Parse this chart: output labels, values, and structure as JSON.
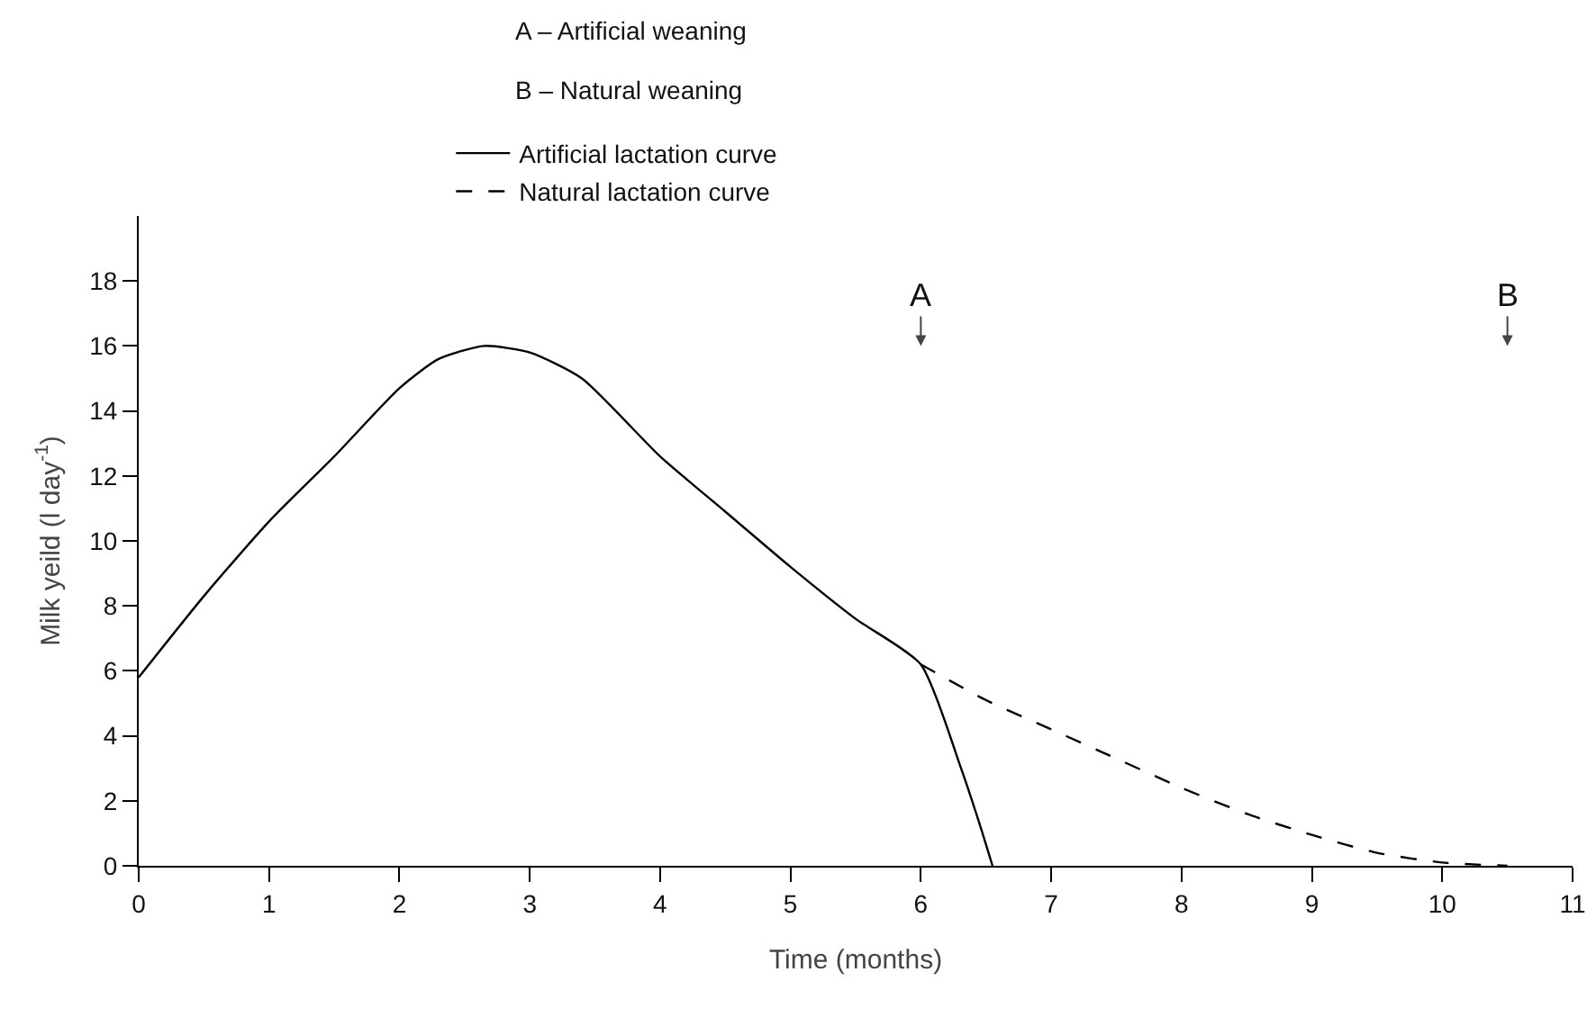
{
  "chart_data": {
    "type": "line",
    "xlabel": "Time (months)",
    "ylabel": "Milk yeild (l day$^{-1}$)",
    "xlim": [
      0,
      11
    ],
    "xticks": [
      0,
      1,
      2,
      3,
      4,
      5,
      6,
      7,
      8,
      9,
      10,
      11
    ],
    "ylim": [
      0,
      20
    ],
    "yticks": [
      0,
      2,
      4,
      6,
      8,
      10,
      12,
      14,
      16,
      18
    ],
    "grid": false,
    "legend": "top",
    "marker": "none",
    "series": [
      {
        "name": "Artificial lactation curve",
        "color": "#000000",
        "line_style": "solid",
        "x": [
          0,
          0.5,
          1,
          1.5,
          2,
          2.3,
          2.65,
          3,
          3.4,
          4,
          4.5,
          5,
          5.5,
          6,
          6.3,
          6.45,
          6.55
        ],
        "values": [
          5.8,
          8.3,
          10.6,
          12.6,
          14.7,
          15.6,
          16.0,
          15.8,
          15.0,
          12.6,
          10.9,
          9.2,
          7.6,
          6.2,
          3.1,
          1.3,
          0
        ]
      },
      {
        "name": "Natural lactation curve",
        "color": "#000000",
        "line_style": "dashed",
        "x": [
          6,
          6.5,
          7,
          7.5,
          8,
          8.5,
          9,
          9.5,
          10,
          10.5
        ],
        "values": [
          6.2,
          5.1,
          4.2,
          3.3,
          2.4,
          1.6,
          0.95,
          0.4,
          0.1,
          0
        ]
      }
    ],
    "annotations": [
      "A – Artificial weaning",
      "B – Natural weaning",
      {
        "text": "A",
        "x": 6
      },
      {
        "text": "B",
        "x": 10.5
      }
    ]
  }
}
